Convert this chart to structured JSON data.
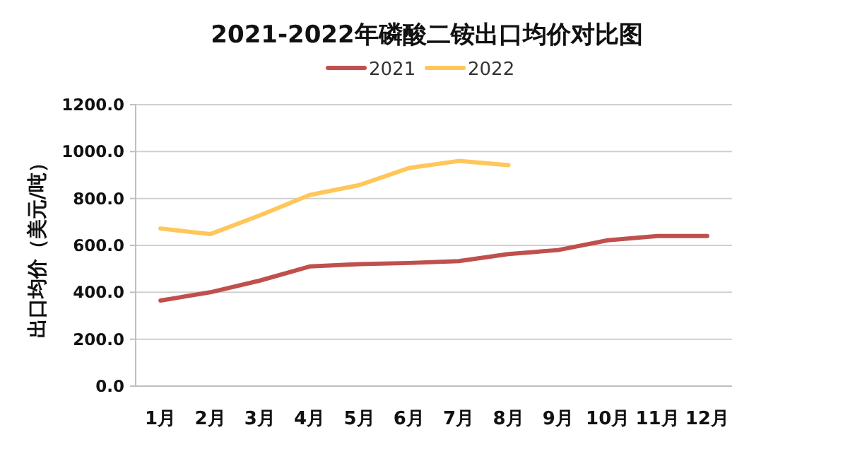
{
  "chart_data": {
    "type": "line",
    "title": "2021-2022年磷酸二铵出口均价对比图",
    "ylabel": "出口均价（美元/吨）",
    "categories": [
      "1月",
      "2月",
      "3月",
      "4月",
      "5月",
      "6月",
      "7月",
      "8月",
      "9月",
      "10月",
      "11月",
      "12月"
    ],
    "series": [
      {
        "name": "2021",
        "color": "#c0504d",
        "values": [
          365,
          400,
          450,
          510,
          520,
          525,
          533,
          563,
          580,
          622,
          640,
          640
        ]
      },
      {
        "name": "2022",
        "color": "#ffc65a",
        "values": [
          672,
          648,
          728,
          815,
          857,
          930,
          960,
          942,
          null,
          null,
          null,
          null
        ]
      }
    ],
    "ylim": [
      0,
      1200
    ],
    "yticks": [
      {
        "value": 0,
        "label": "0.0"
      },
      {
        "value": 200,
        "label": "200.0"
      },
      {
        "value": 400,
        "label": "400.0"
      },
      {
        "value": 600,
        "label": "600.0"
      },
      {
        "value": 800,
        "label": "800.0"
      },
      {
        "value": 1000,
        "label": "1000.0"
      },
      {
        "value": 1200,
        "label": "1200.0"
      }
    ],
    "grid": "y",
    "legend": "top",
    "marker": "none",
    "line_style": "solid"
  }
}
